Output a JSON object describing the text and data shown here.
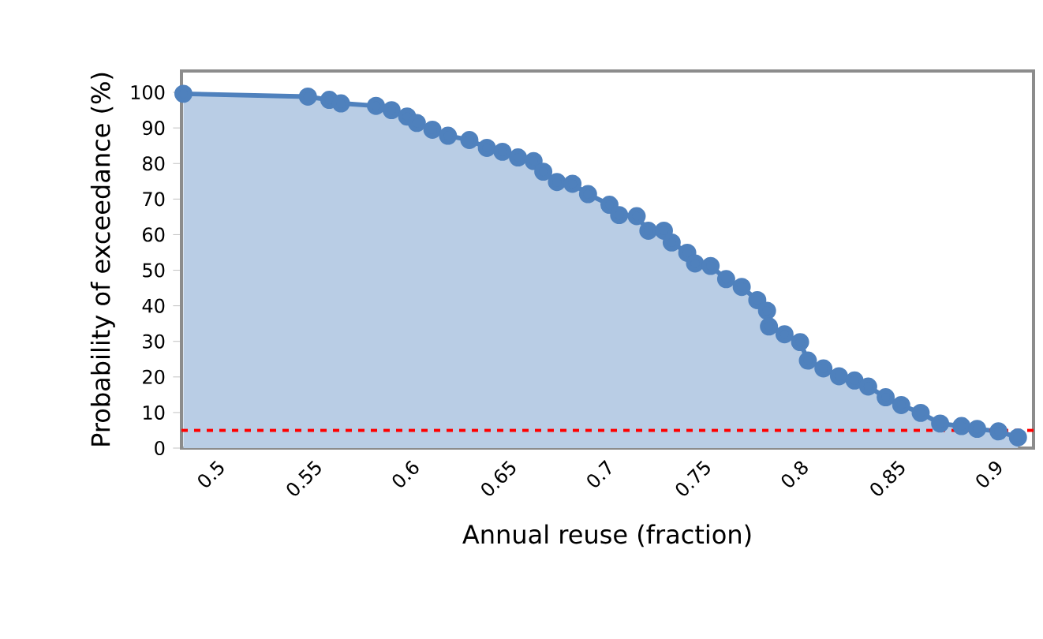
{
  "chart_data": {
    "type": "area",
    "xlabel": "Annual reuse (fraction)",
    "ylabel": "Probability of exceedance (%)",
    "xlim": [
      0.482,
      0.92
    ],
    "ylim": [
      0,
      106
    ],
    "xticks": [
      0.5,
      0.55,
      0.6,
      0.65,
      0.7,
      0.75,
      0.8,
      0.85,
      0.9
    ],
    "yticks": [
      0,
      10,
      20,
      30,
      40,
      50,
      60,
      70,
      80,
      90,
      100
    ],
    "grid": false,
    "marker": "circle",
    "ref_lines": [
      {
        "axis": "y",
        "value": 5,
        "color": "#ff0000",
        "line_style": "dashed"
      }
    ],
    "series": [
      {
        "color": "#4f81bd",
        "x": [
          0.483,
          0.547,
          0.558,
          0.564,
          0.582,
          0.59,
          0.598,
          0.603,
          0.611,
          0.619,
          0.63,
          0.639,
          0.647,
          0.655,
          0.663,
          0.668,
          0.675,
          0.683,
          0.691,
          0.702,
          0.707,
          0.716,
          0.722,
          0.73,
          0.734,
          0.742,
          0.746,
          0.754,
          0.762,
          0.77,
          0.778,
          0.783,
          0.784,
          0.792,
          0.8,
          0.804,
          0.812,
          0.82,
          0.828,
          0.835,
          0.844,
          0.852,
          0.862,
          0.872,
          0.883,
          0.891,
          0.902,
          0.912
        ],
        "values": [
          99.6,
          98.8,
          97.9,
          96.9,
          96.2,
          95,
          93.2,
          91.4,
          89.5,
          87.8,
          86.6,
          84.4,
          83.3,
          81.7,
          80.7,
          77.7,
          74.8,
          74.3,
          71.4,
          68.4,
          65.5,
          65.2,
          61.1,
          61.1,
          57.8,
          54.9,
          51.9,
          51.2,
          47.5,
          45.3,
          41.6,
          38.6,
          34.2,
          32,
          29.8,
          24.6,
          22.4,
          20.2,
          19,
          17.3,
          14.3,
          12.1,
          9.9,
          6.9,
          6.2,
          5.4,
          4.7,
          3
        ]
      }
    ]
  }
}
